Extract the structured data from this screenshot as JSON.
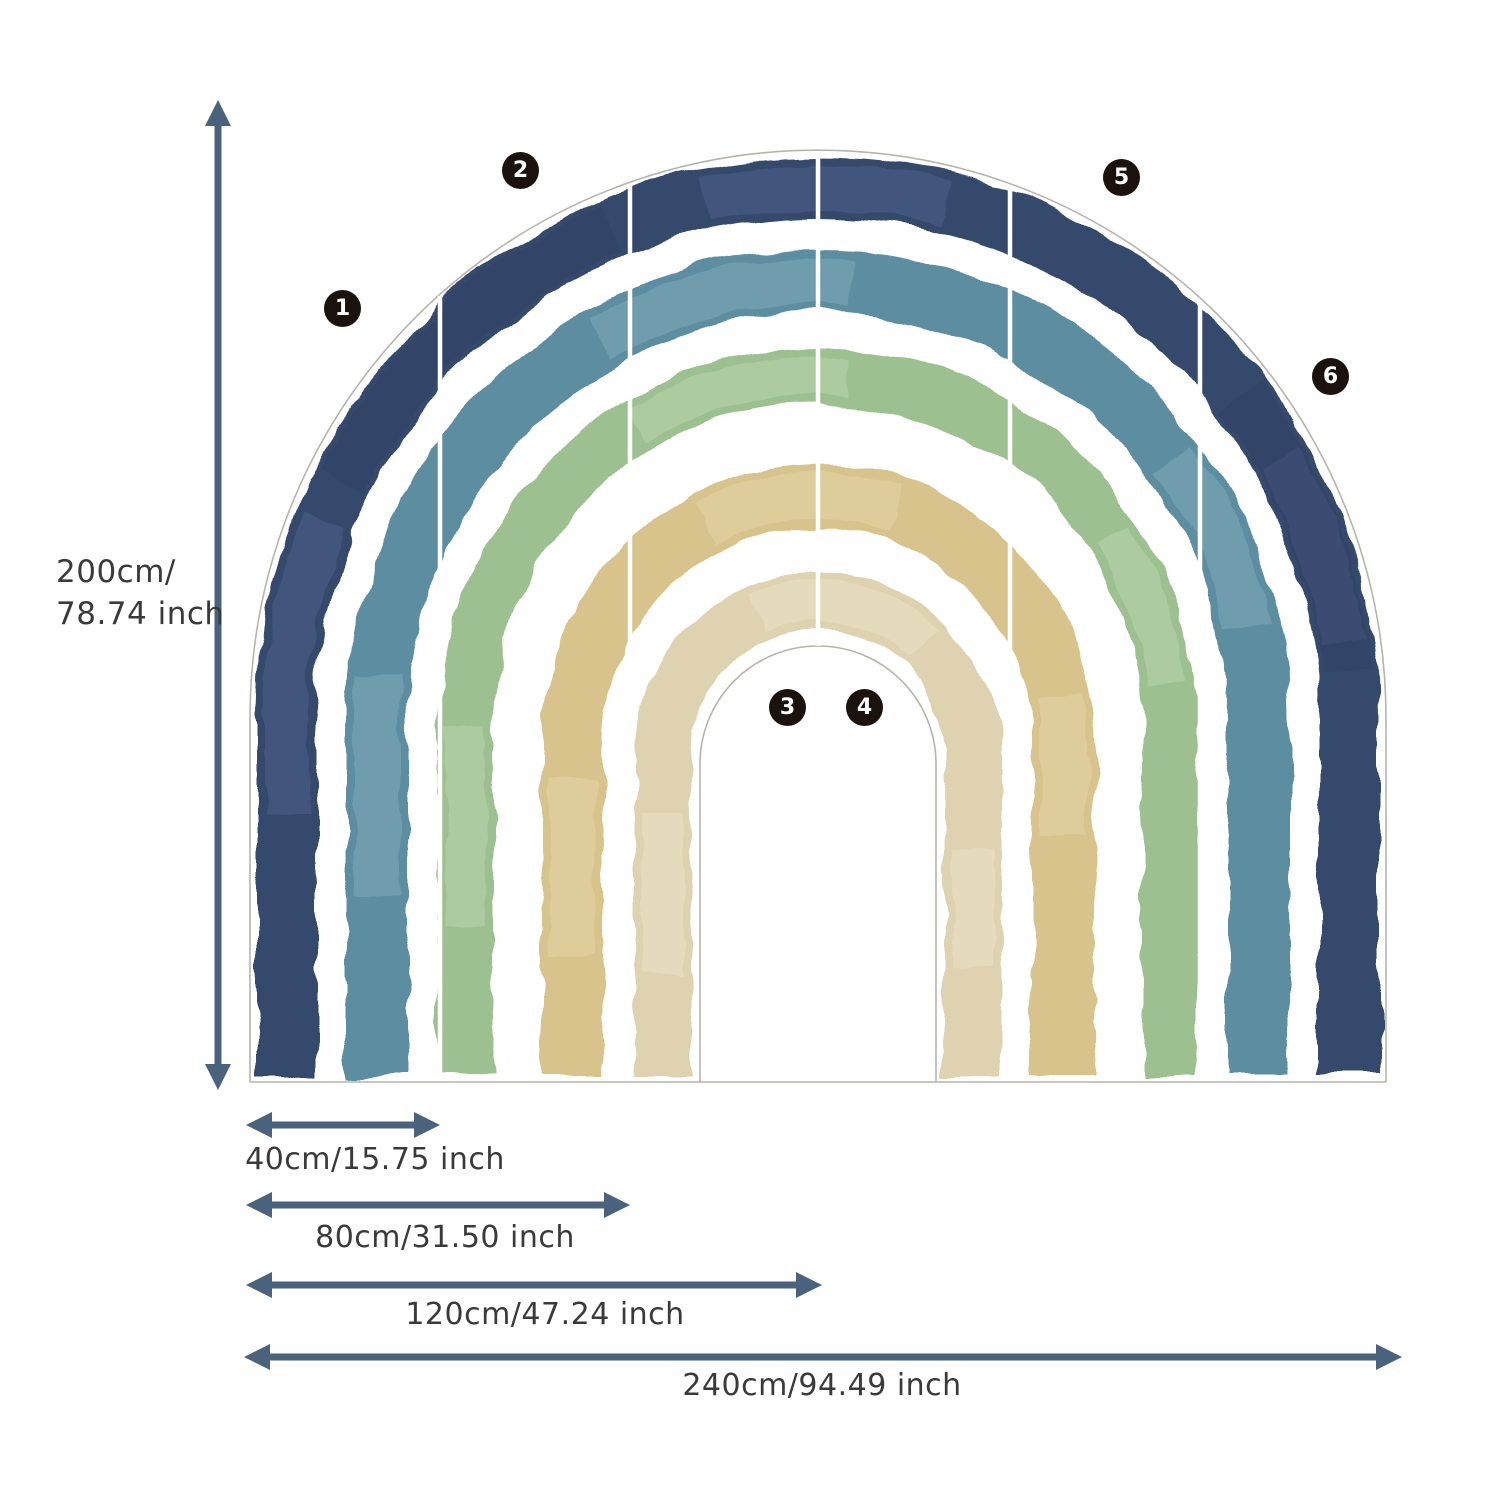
{
  "figure": {
    "type": "wall-decal-dimension-diagram",
    "background": "#ffffff"
  },
  "rainbow": {
    "outline_color": "#b8b4ac",
    "divider_color": "#ffffff",
    "bands": [
      {
        "name": "navy",
        "color": "#344a6d",
        "light": "#56618b",
        "dark": "#2a3d5e"
      },
      {
        "name": "teal",
        "color": "#5b8da0",
        "light": "#88b1bd"
      },
      {
        "name": "green",
        "color": "#9dc091",
        "light": "#bed9b0"
      },
      {
        "name": "tan",
        "color": "#d7c38b",
        "light": "#e6d9ad"
      },
      {
        "name": "beige",
        "color": "#ded2b0",
        "light": "#ede5cc"
      }
    ]
  },
  "panels": {
    "badge_bg": "#1c120d",
    "badge_text": "#ffffff",
    "items": [
      {
        "label": "1"
      },
      {
        "label": "2"
      },
      {
        "label": "3"
      },
      {
        "label": "4"
      },
      {
        "label": "5"
      },
      {
        "label": "6"
      }
    ]
  },
  "dimensions": {
    "arrow_color": "#4a627c",
    "text_color": "#3a3a3a",
    "height": {
      "line1": "200cm/",
      "line2": "78.74 inch"
    },
    "widths": [
      {
        "label": "40cm/15.75 inch"
      },
      {
        "label": "80cm/31.50 inch"
      },
      {
        "label": "120cm/47.24 inch"
      },
      {
        "label": "240cm/94.49 inch"
      }
    ]
  }
}
